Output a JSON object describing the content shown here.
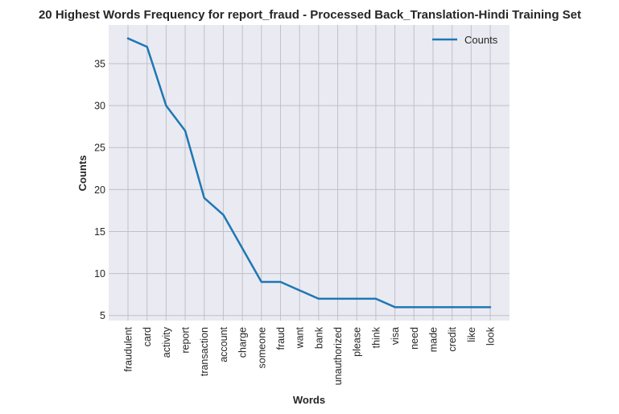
{
  "chart_data": {
    "type": "line",
    "title": "20 Highest Words Frequency for report_fraud - Processed Back_Translation-Hindi Training Set",
    "xlabel": "Words",
    "ylabel": "Counts",
    "categories": [
      "fraudulent",
      "card",
      "activity",
      "report",
      "transaction",
      "account",
      "charge",
      "someone",
      "fraud",
      "want",
      "bank",
      "unauthorized",
      "please",
      "think",
      "visa",
      "need",
      "made",
      "credit",
      "like",
      "look"
    ],
    "series": [
      {
        "name": "Counts",
        "values": [
          38,
          37,
          30,
          27,
          19,
          17,
          13,
          9,
          9,
          8,
          7,
          7,
          7,
          7,
          6,
          6,
          6,
          6,
          6,
          6
        ]
      }
    ],
    "ylim": [
      4.4,
      39.6
    ],
    "yticks": [
      5,
      10,
      15,
      20,
      25,
      30,
      35
    ],
    "grid": true,
    "legend_position": "top-right",
    "colors": {
      "line": "#1f77b4",
      "plot_bg": "#eaeaf2",
      "grid": "#c0c0c8"
    }
  }
}
